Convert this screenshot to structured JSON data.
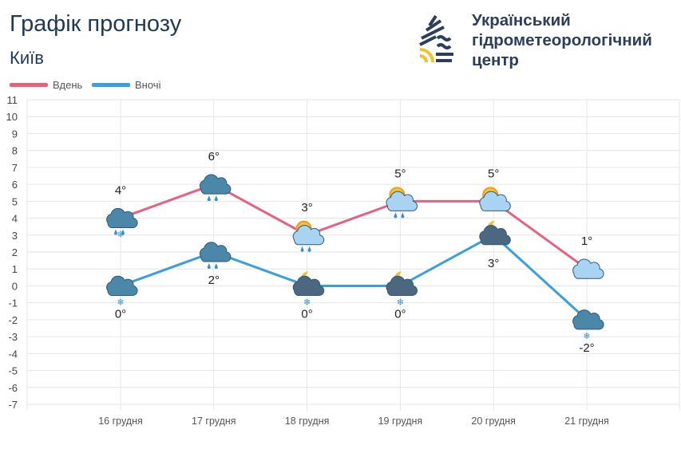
{
  "header": {
    "title": "Графік прогнозу",
    "city": "Київ",
    "org_lines": [
      "Український",
      "гідрометеорологічний",
      "центр"
    ]
  },
  "chart_data": {
    "type": "line",
    "categories": [
      "16 грудня",
      "17 грудня",
      "18 грудня",
      "19 грудня",
      "20 грудня",
      "21 грудня"
    ],
    "series": [
      {
        "name": "Вдень",
        "color": "#e8607f",
        "values": [
          4,
          6,
          3,
          5,
          5,
          1
        ],
        "labels": [
          "4°",
          "6°",
          "3°",
          "5°",
          "5°",
          "1°"
        ],
        "icons": [
          "cloud-snow-rain",
          "cloud-rain",
          "sun-cloud-rain",
          "sun-cloud-rain",
          "sun-cloud",
          "cloud"
        ]
      },
      {
        "name": "Вночі",
        "color": "#3a9ee0",
        "values": [
          0,
          2,
          0,
          0,
          3,
          -2
        ],
        "labels": [
          "0°",
          "2°",
          "0°",
          "0°",
          "3°",
          "-2°"
        ],
        "icons": [
          "cloud-snow",
          "cloud-rain",
          "moon-cloud-snow",
          "moon-cloud-snow",
          "moon-cloud",
          "cloud-snow"
        ]
      }
    ],
    "ylim": [
      -7,
      11
    ],
    "yticks": [
      11,
      10,
      9,
      8,
      7,
      6,
      5,
      4,
      3,
      2,
      1,
      0,
      -1,
      -2,
      -3,
      -4,
      -5,
      -6,
      -7
    ],
    "grid": true,
    "legend": "top-left"
  }
}
